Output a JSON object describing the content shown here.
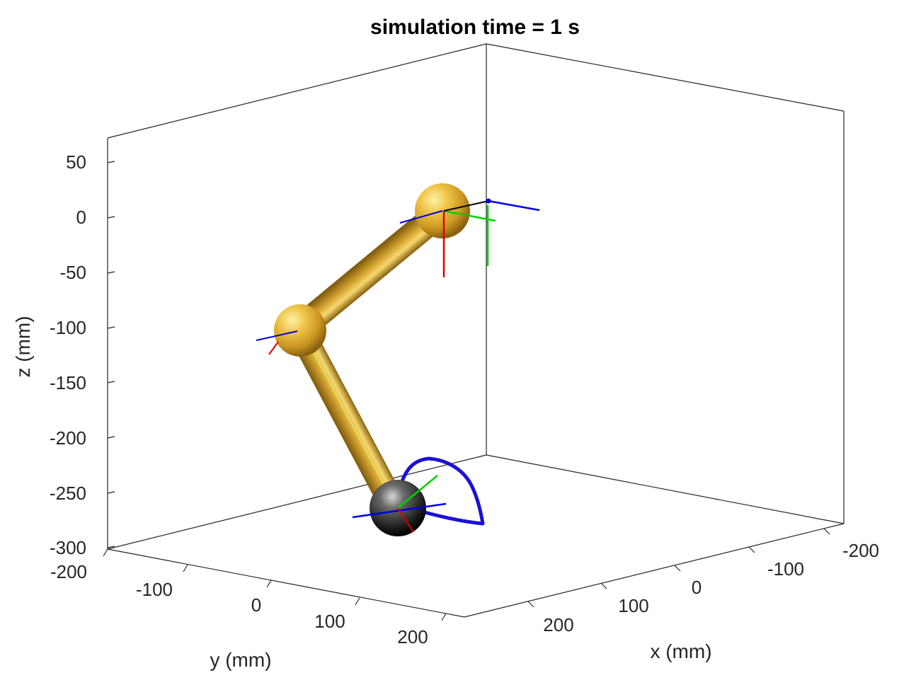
{
  "chart_data": {
    "type": "3d-line",
    "title": "simulation time = 1 s",
    "xlabel": "x (mm)",
    "ylabel": "y (mm)",
    "zlabel": "z (mm)",
    "xlim": [
      -250,
      250
    ],
    "ylim": [
      -200,
      250
    ],
    "zlim": [
      -300,
      100
    ],
    "x_ticks": [
      "-200",
      "-100",
      "0",
      "100",
      "200"
    ],
    "y_ticks": [
      "-200",
      "-100",
      "0",
      "100",
      "200"
    ],
    "z_ticks": [
      "50",
      "0",
      "-50",
      "-100",
      "-150",
      "-200",
      "-250",
      "-300"
    ],
    "grid": false,
    "robot_arm": {
      "links": [
        "shoulder-to-elbow",
        "elbow-to-end-effector"
      ],
      "joints": [
        "base",
        "elbow",
        "end-effector"
      ],
      "link_color": "#d4a72c",
      "end_effector_color": "#2a2a2a"
    },
    "trajectory_color": "#1a10d8",
    "frame_axis_colors": {
      "x": "#e00000",
      "y": "#00d000",
      "z": "#0000e0"
    }
  }
}
